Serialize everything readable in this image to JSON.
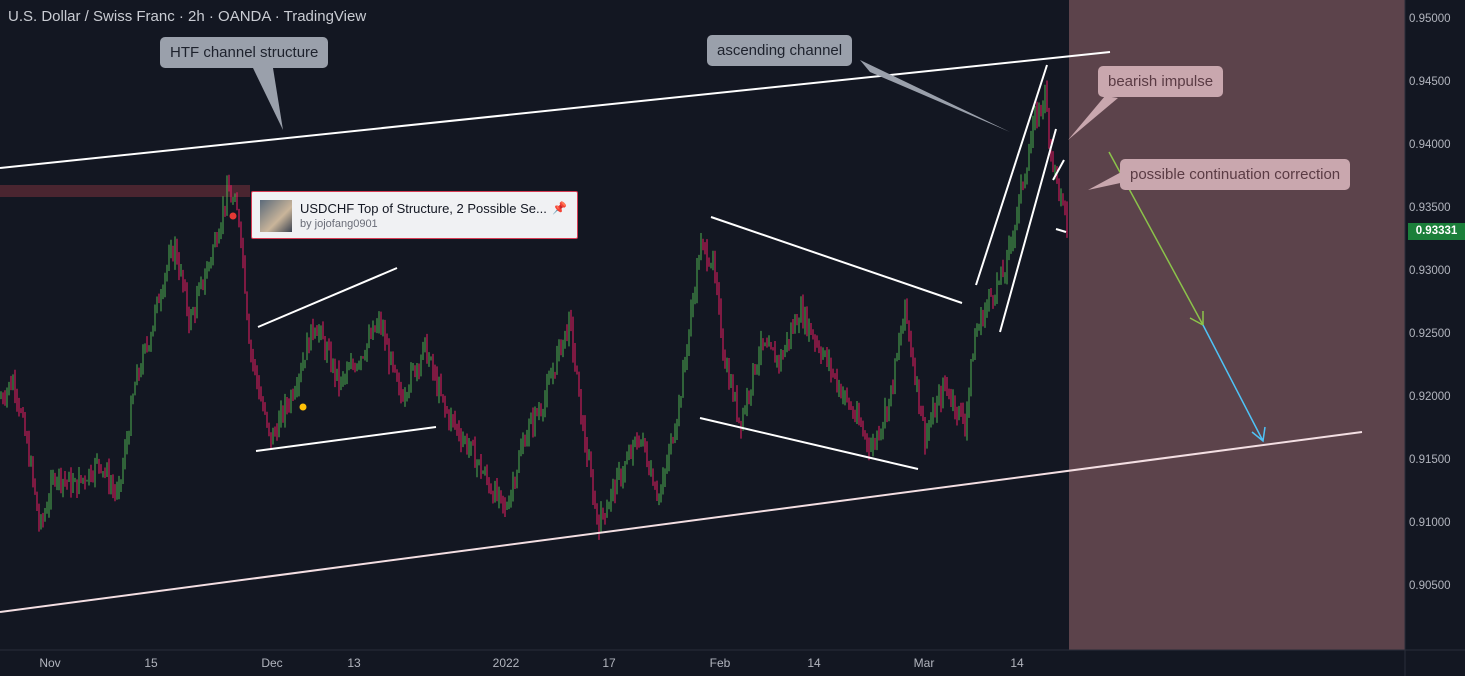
{
  "header": {
    "title": "U.S. Dollar / Swiss Franc · 2h · OANDA · TradingView"
  },
  "annotations": {
    "htf_channel": "HTF channel structure",
    "ascending_channel": "ascending channel",
    "bearish_impulse": "bearish impulse",
    "continuation": "possible continuation correction"
  },
  "idea_card": {
    "title": "USDCHF Top of Structure, 2 Possible Se...",
    "author": "by jojofang0901"
  },
  "last_price": "0.93331",
  "colors": {
    "background": "#131722",
    "bull_candle": "#4caf50",
    "bear_candle": "#e91e63",
    "forecast_zone": "#5c434b",
    "green_arrow": "#8bc34a",
    "blue_arrow": "#4fc3f7"
  },
  "chart_data": {
    "type": "candlestick",
    "symbol": "USDCHF",
    "timeframe": "2h",
    "ylim": [
      0.9005,
      0.951
    ],
    "y_ticks": [
      "0.95000",
      "0.94500",
      "0.94000",
      "0.93500",
      "0.93000",
      "0.92500",
      "0.92000",
      "0.91500",
      "0.91000",
      "0.90500"
    ],
    "x_ticks": [
      "Nov",
      "15",
      "Dec",
      "13",
      "2022",
      "17",
      "Feb",
      "14",
      "Mar",
      "14"
    ],
    "price_path": [
      {
        "t": 0,
        "p": 0.92
      },
      {
        "t": 14,
        "p": 0.9215
      },
      {
        "t": 30,
        "p": 0.915
      },
      {
        "t": 40,
        "p": 0.9095
      },
      {
        "t": 55,
        "p": 0.914
      },
      {
        "t": 75,
        "p": 0.913
      },
      {
        "t": 100,
        "p": 0.915
      },
      {
        "t": 118,
        "p": 0.912
      },
      {
        "t": 135,
        "p": 0.921
      },
      {
        "t": 150,
        "p": 0.925
      },
      {
        "t": 165,
        "p": 0.93
      },
      {
        "t": 175,
        "p": 0.932
      },
      {
        "t": 190,
        "p": 0.926
      },
      {
        "t": 210,
        "p": 0.931
      },
      {
        "t": 228,
        "p": 0.9365
      },
      {
        "t": 240,
        "p": 0.934
      },
      {
        "t": 250,
        "p": 0.924
      },
      {
        "t": 270,
        "p": 0.9165
      },
      {
        "t": 290,
        "p": 0.92
      },
      {
        "t": 315,
        "p": 0.926
      },
      {
        "t": 340,
        "p": 0.921
      },
      {
        "t": 365,
        "p": 0.924
      },
      {
        "t": 380,
        "p": 0.926
      },
      {
        "t": 400,
        "p": 0.92
      },
      {
        "t": 425,
        "p": 0.924
      },
      {
        "t": 445,
        "p": 0.919
      },
      {
        "t": 470,
        "p": 0.916
      },
      {
        "t": 490,
        "p": 0.913
      },
      {
        "t": 505,
        "p": 0.911
      },
      {
        "t": 525,
        "p": 0.917
      },
      {
        "t": 545,
        "p": 0.92
      },
      {
        "t": 560,
        "p": 0.924
      },
      {
        "t": 570,
        "p": 0.926
      },
      {
        "t": 582,
        "p": 0.918
      },
      {
        "t": 598,
        "p": 0.91
      },
      {
        "t": 615,
        "p": 0.913
      },
      {
        "t": 640,
        "p": 0.917
      },
      {
        "t": 660,
        "p": 0.912
      },
      {
        "t": 680,
        "p": 0.92
      },
      {
        "t": 690,
        "p": 0.926
      },
      {
        "t": 700,
        "p": 0.932
      },
      {
        "t": 712,
        "p": 0.931
      },
      {
        "t": 725,
        "p": 0.923
      },
      {
        "t": 740,
        "p": 0.918
      },
      {
        "t": 760,
        "p": 0.924
      },
      {
        "t": 780,
        "p": 0.923
      },
      {
        "t": 800,
        "p": 0.927
      },
      {
        "t": 820,
        "p": 0.924
      },
      {
        "t": 845,
        "p": 0.92
      },
      {
        "t": 872,
        "p": 0.916
      },
      {
        "t": 890,
        "p": 0.92
      },
      {
        "t": 905,
        "p": 0.927
      },
      {
        "t": 925,
        "p": 0.917
      },
      {
        "t": 945,
        "p": 0.921
      },
      {
        "t": 965,
        "p": 0.918
      },
      {
        "t": 975,
        "p": 0.925
      },
      {
        "t": 990,
        "p": 0.928
      },
      {
        "t": 1005,
        "p": 0.93
      },
      {
        "t": 1020,
        "p": 0.936
      },
      {
        "t": 1035,
        "p": 0.942
      },
      {
        "t": 1045,
        "p": 0.944
      },
      {
        "t": 1052,
        "p": 0.939
      },
      {
        "t": 1060,
        "p": 0.936
      },
      {
        "t": 1068,
        "p": 0.9333
      }
    ]
  }
}
